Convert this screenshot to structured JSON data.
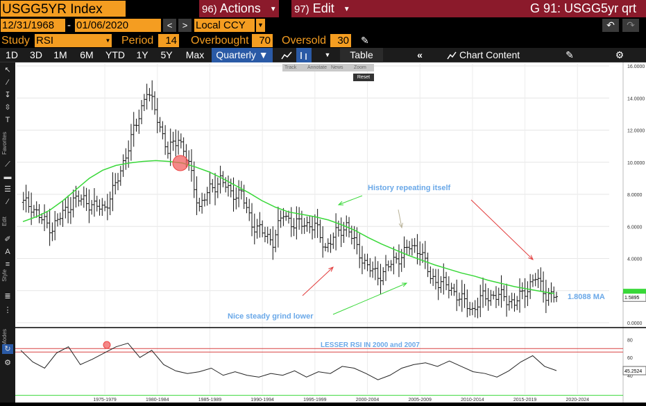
{
  "titlebar": {
    "ticker": "USGG5YR Index",
    "actions": {
      "num": "96)",
      "label": "Actions"
    },
    "edit": {
      "num": "97)",
      "label": "Edit"
    },
    "right_title": "G 91: USGG5yr qrt"
  },
  "daterow": {
    "start_date": "12/31/1968",
    "dash": "-",
    "end_date": "01/06/2020",
    "prev": "<",
    "next": ">",
    "currency": "Local CCY"
  },
  "studyrow": {
    "study_label": "Study",
    "study_value": "RSI",
    "period_label": "Period",
    "period_value": "14",
    "overbought_label": "Overbought",
    "overbought_value": "70",
    "oversold_label": "Oversold",
    "oversold_value": "30"
  },
  "toolbar": {
    "ranges": [
      "1D",
      "3D",
      "1M",
      "6M",
      "YTD",
      "1Y",
      "5Y",
      "Max"
    ],
    "frequency": "Quarterly ▼",
    "table": "Table",
    "chart_content": "Chart Content"
  },
  "floating_toolbar": {
    "items": [
      "Track",
      "Annotate",
      "News",
      "Zoom"
    ],
    "reset": "Reset"
  },
  "left_strip": {
    "favorites": "Favorites",
    "edit": "Edit",
    "style": "Style",
    "modes": "Modes"
  },
  "annotations": {
    "history": "History repeating itself",
    "grind": "Nice steady grind lower",
    "ma_value": "1.8088 MA",
    "rsi_note": "LESSER RSI IN 2000 and 2007"
  },
  "price_badge": "1.5895",
  "rsi_badge": "45.2524",
  "colors": {
    "ma_line": "#39d839",
    "annotation": "#6aa8e8",
    "arrow_red": "#e23a3a",
    "arrow_green": "#39d839",
    "orange": "#f49d21",
    "crimson": "#8b1a2b"
  },
  "chart_data": [
    {
      "type": "ohlc",
      "series": [
        {
          "name": "USGG5YR Index"
        },
        {
          "name": "MA",
          "last": 1.8088
        }
      ],
      "y_ticks": [
        "16.0000",
        "14.0000",
        "12.0000",
        "10.0000",
        "8.0000",
        "6.0000",
        "4.0000",
        "2.0000",
        "0.0000"
      ],
      "ylim": [
        0,
        16
      ],
      "x_ticks": [
        "1975-1979",
        "1980-1984",
        "1985-1989",
        "1990-1994",
        "1995-1999",
        "2000-2004",
        "2005-2009",
        "2010-2014",
        "2015-2019",
        "2020-2024"
      ],
      "x": [
        1969,
        1970,
        1971,
        1972,
        1973,
        1974,
        1975,
        1976,
        1977,
        1978,
        1979,
        1980,
        1981,
        1982,
        1983,
        1984,
        1985,
        1986,
        1987,
        1988,
        1989,
        1990,
        1991,
        1992,
        1993,
        1994,
        1995,
        1996,
        1997,
        1998,
        1999,
        2000,
        2001,
        2002,
        2003,
        2004,
        2005,
        2006,
        2007,
        2008,
        2009,
        2010,
        2011,
        2012,
        2013,
        2014,
        2015,
        2016,
        2017,
        2018,
        2019,
        2020
      ],
      "close": [
        7.5,
        7.3,
        6.4,
        5.9,
        6.8,
        7.6,
        7.7,
        7.2,
        7.2,
        8.5,
        10.5,
        12.4,
        14.5,
        12.8,
        10.6,
        11.6,
        9.8,
        7.2,
        8.3,
        8.9,
        8.1,
        8.0,
        6.2,
        5.6,
        5.1,
        6.8,
        6.1,
        6.2,
        6.0,
        4.7,
        5.5,
        6.1,
        4.6,
        3.5,
        2.9,
        3.5,
        4.1,
        4.7,
        4.6,
        2.8,
        2.5,
        2.1,
        1.4,
        0.8,
        1.6,
        1.7,
        1.6,
        1.2,
        2.0,
        2.8,
        1.8,
        1.59
      ],
      "ma": [
        6.3,
        6.6,
        7.0,
        7.6,
        8.3,
        9.0,
        9.5,
        9.8,
        9.95,
        10.05,
        10.1,
        10.05,
        9.95,
        9.7,
        9.4,
        9.0,
        8.55,
        8.1,
        7.6,
        7.2,
        6.9,
        6.75,
        6.6,
        6.4,
        6.1,
        5.75,
        5.3,
        4.9,
        4.55,
        4.2,
        3.9,
        3.6,
        3.35,
        3.1,
        2.9,
        2.65,
        2.45,
        2.25,
        2.1,
        1.95,
        1.81
      ]
    },
    {
      "type": "line",
      "series": [
        {
          "name": "RSI",
          "values": [
            68,
            55,
            48,
            65,
            72,
            52,
            58,
            65,
            72,
            76,
            60,
            68,
            52,
            45,
            42,
            44,
            48,
            40,
            44,
            40,
            38,
            42,
            40,
            45,
            38,
            44,
            42,
            50,
            48,
            42,
            35,
            40,
            48,
            52,
            54,
            50,
            56,
            50,
            44,
            42,
            38,
            45,
            55,
            62,
            50,
            45.25
          ]
        }
      ],
      "y_ticks": [
        "80",
        "60",
        "40"
      ],
      "ylim": [
        25,
        85
      ],
      "overbought": 70,
      "oversold": 30
    }
  ]
}
